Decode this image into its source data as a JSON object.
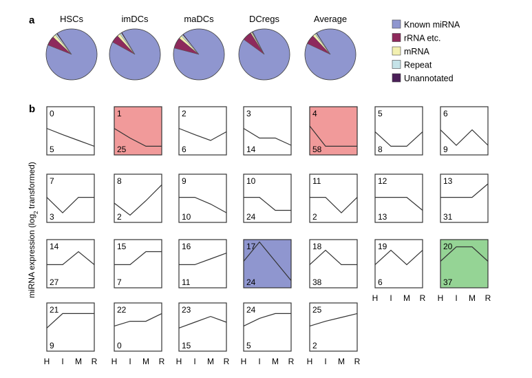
{
  "panel_labels": {
    "a": "a",
    "b": "b"
  },
  "colors": {
    "known_mirna": "#8f96cf",
    "rrna": "#8e2a5c",
    "mrna": "#f3f0b0",
    "repeat": "#c5e3e8",
    "unannotated": "#4b1f58",
    "highlight_red": "#f19a9a",
    "highlight_blue": "#8f96cf",
    "highlight_green": "#95d495"
  },
  "chart_data": [
    {
      "type": "pie",
      "legend_position": "right",
      "legend": [
        "Known miRNA",
        "rRNA etc.",
        "mRNA",
        "Repeat",
        "Unannotated"
      ],
      "pies": [
        {
          "title": "HSCs",
          "values": [
            90.5,
            6.0,
            2.0,
            1.0,
            0.5
          ]
        },
        {
          "title": "imDCs",
          "values": [
            91.5,
            5.0,
            2.0,
            1.0,
            0.5
          ]
        },
        {
          "title": "maDCs",
          "values": [
            89.5,
            7.0,
            2.0,
            1.0,
            0.5
          ]
        },
        {
          "title": "DCregs",
          "values": [
            92.5,
            6.0,
            0.8,
            0.4,
            0.3
          ]
        },
        {
          "title": "Average",
          "values": [
            91.0,
            6.0,
            1.8,
            0.8,
            0.4
          ]
        }
      ]
    },
    {
      "type": "line",
      "ylabel_prefix": "miRNA expression (log",
      "ylabel_sub": "2",
      "ylabel_suffix": " transformed)",
      "categories": [
        "H",
        "I",
        "M",
        "R"
      ],
      "ylim": [
        0,
        1
      ],
      "profiles": [
        {
          "id": "0",
          "count": "5",
          "values": [
            0.55,
            0.42,
            0.3,
            0.18
          ],
          "highlight": ""
        },
        {
          "id": "1",
          "count": "25",
          "values": [
            0.55,
            0.35,
            0.18,
            0.18
          ],
          "highlight": "red"
        },
        {
          "id": "2",
          "count": "6",
          "values": [
            0.55,
            0.42,
            0.3,
            0.48
          ],
          "highlight": ""
        },
        {
          "id": "3",
          "count": "14",
          "values": [
            0.55,
            0.35,
            0.35,
            0.2
          ],
          "highlight": ""
        },
        {
          "id": "4",
          "count": "58",
          "values": [
            0.6,
            0.18,
            0.18,
            0.18
          ],
          "highlight": "red"
        },
        {
          "id": "5",
          "count": "8",
          "values": [
            0.48,
            0.18,
            0.18,
            0.48
          ],
          "highlight": ""
        },
        {
          "id": "6",
          "count": "9",
          "values": [
            0.52,
            0.2,
            0.52,
            0.2
          ],
          "highlight": ""
        },
        {
          "id": "7",
          "count": "3",
          "values": [
            0.52,
            0.2,
            0.52,
            0.52
          ],
          "highlight": ""
        },
        {
          "id": "8",
          "count": "2",
          "values": [
            0.4,
            0.15,
            0.45,
            0.78
          ],
          "highlight": ""
        },
        {
          "id": "9",
          "count": "10",
          "values": [
            0.52,
            0.52,
            0.38,
            0.2
          ],
          "highlight": ""
        },
        {
          "id": "10",
          "count": "24",
          "values": [
            0.52,
            0.52,
            0.25,
            0.25
          ],
          "highlight": ""
        },
        {
          "id": "11",
          "count": "2",
          "values": [
            0.52,
            0.52,
            0.2,
            0.52
          ],
          "highlight": ""
        },
        {
          "id": "12",
          "count": "13",
          "values": [
            0.52,
            0.52,
            0.52,
            0.25
          ],
          "highlight": ""
        },
        {
          "id": "13",
          "count": "31",
          "values": [
            0.52,
            0.52,
            0.52,
            0.8
          ],
          "highlight": ""
        },
        {
          "id": "14",
          "count": "27",
          "values": [
            0.48,
            0.48,
            0.75,
            0.48
          ],
          "highlight": ""
        },
        {
          "id": "15",
          "count": "7",
          "values": [
            0.48,
            0.48,
            0.75,
            0.75
          ],
          "highlight": ""
        },
        {
          "id": "16",
          "count": "11",
          "values": [
            0.48,
            0.48,
            0.6,
            0.72
          ],
          "highlight": ""
        },
        {
          "id": "17",
          "count": "24",
          "values": [
            0.55,
            0.95,
            0.55,
            0.15
          ],
          "highlight": "blue"
        },
        {
          "id": "18",
          "count": "38",
          "values": [
            0.48,
            0.78,
            0.48,
            0.48
          ],
          "highlight": ""
        },
        {
          "id": "19",
          "count": "6",
          "values": [
            0.48,
            0.78,
            0.48,
            0.78
          ],
          "highlight": ""
        },
        {
          "id": "20",
          "count": "37",
          "values": [
            0.55,
            0.85,
            0.85,
            0.55
          ],
          "highlight": "green"
        },
        {
          "id": "21",
          "count": "9",
          "values": [
            0.48,
            0.78,
            0.78,
            0.78
          ],
          "highlight": ""
        },
        {
          "id": "22",
          "count": "0",
          "values": [
            0.52,
            0.62,
            0.62,
            0.78
          ],
          "highlight": ""
        },
        {
          "id": "23",
          "count": "15",
          "values": [
            0.48,
            0.6,
            0.72,
            0.6
          ],
          "highlight": ""
        },
        {
          "id": "24",
          "count": "5",
          "values": [
            0.52,
            0.68,
            0.78,
            0.78
          ],
          "highlight": ""
        },
        {
          "id": "25",
          "count": "2",
          "values": [
            0.52,
            0.62,
            0.7,
            0.78
          ],
          "highlight": ""
        }
      ]
    }
  ]
}
